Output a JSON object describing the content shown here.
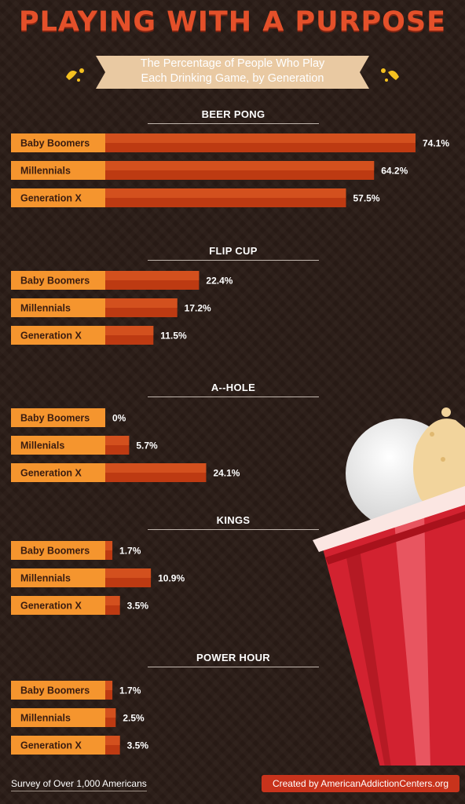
{
  "title": "Playing With a Purpose",
  "subtitle_line1": "The Percentage of People Who Play",
  "subtitle_line2": "Each Drinking Game, by Generation",
  "footer": {
    "source": "Survey of Over 1,000 Americans",
    "credit": "Created by AmericanAddictionCenters.org"
  },
  "colors": {
    "title": "#e4502a",
    "label_box": "#f5952e",
    "bar_dark": "#bd3a12",
    "bar_light": "#d3501e",
    "cup_red": "#d22230"
  },
  "chart_data": {
    "type": "bar",
    "orientation": "horizontal",
    "unit": "%",
    "xlim": [
      0,
      74.1
    ],
    "charts": [
      {
        "title": "BEER PONG",
        "categories": [
          "Baby Boomers",
          "Millennials",
          "Generation X"
        ],
        "values": [
          74.1,
          64.2,
          57.5
        ],
        "labels": [
          "74.1%",
          "64.2%",
          "57.5%"
        ]
      },
      {
        "title": "FLIP CUP",
        "categories": [
          "Baby Boomers",
          "Millennials",
          "Generation X"
        ],
        "values": [
          22.4,
          17.2,
          11.5
        ],
        "labels": [
          "22.4%",
          "17.2%",
          "11.5%"
        ]
      },
      {
        "title": "A--HOLE",
        "categories": [
          "Baby Boomers",
          "Millenials",
          "Generation X"
        ],
        "values": [
          0,
          5.7,
          24.1
        ],
        "labels": [
          "0%",
          "5.7%",
          "24.1%"
        ]
      },
      {
        "title": "KINGS",
        "categories": [
          "Baby Boomers",
          "Millennials",
          "Generation X"
        ],
        "values": [
          1.7,
          10.9,
          3.5
        ],
        "labels": [
          "1.7%",
          "10.9%",
          "3.5%"
        ]
      },
      {
        "title": "POWER HOUR",
        "categories": [
          "Baby Boomers",
          "Millennials",
          "Generation X"
        ],
        "values": [
          1.7,
          2.5,
          3.5
        ],
        "labels": [
          "1.7%",
          "2.5%",
          "3.5%"
        ]
      }
    ]
  }
}
